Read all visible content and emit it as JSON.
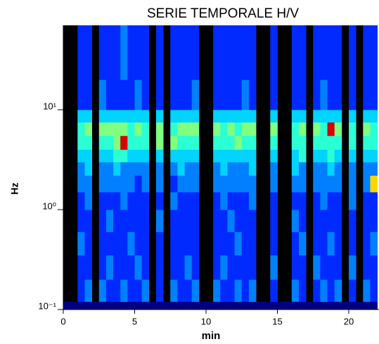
{
  "chart_data": {
    "type": "heatmap",
    "title": "SERIE TEMPORALE H/V",
    "xlabel": "min",
    "ylabel": "Hz",
    "xlim": [
      0,
      22
    ],
    "xticks": [
      0,
      5,
      10,
      15,
      20
    ],
    "ylim": [
      0.1,
      70
    ],
    "yscale": "log",
    "yticks": [
      {
        "value": 0.1,
        "label": "10⁻¹"
      },
      {
        "value": 1,
        "label": "10⁰"
      },
      {
        "value": 10,
        "label": "10¹"
      }
    ],
    "colormap": "jet",
    "clim": [
      0,
      12
    ],
    "missing_color": "#000000",
    "xbins": [
      0,
      0.5,
      1,
      1.5,
      2,
      2.5,
      3,
      3.5,
      4,
      4.5,
      5,
      5.5,
      6,
      6.5,
      7,
      7.5,
      8,
      8.5,
      9,
      9.5,
      10,
      10.5,
      11,
      11.5,
      12,
      12.5,
      13,
      13.5,
      14,
      14.5,
      15,
      15.5,
      16,
      16.5,
      17,
      17.5,
      18,
      18.5,
      19,
      19.5,
      20,
      20.5,
      21,
      21.5,
      22
    ],
    "ybins": [
      0.1,
      0.12,
      0.2,
      0.35,
      0.6,
      1,
      1.5,
      2.2,
      3,
      4,
      5.5,
      7.5,
      10,
      20,
      70
    ],
    "z": [
      [
        0,
        0,
        0,
        0,
        0,
        0,
        0,
        0,
        0,
        0,
        0,
        0,
        0,
        0,
        0,
        0,
        0,
        0,
        0,
        0,
        0,
        0,
        0,
        0,
        0,
        0,
        0,
        0,
        0,
        0,
        0,
        0,
        0,
        0,
        0,
        0,
        0,
        0,
        0,
        0,
        0,
        0,
        0,
        0
      ],
      [
        null,
        null,
        2,
        3,
        null,
        3,
        2,
        2,
        3,
        2,
        2,
        3,
        null,
        2,
        null,
        3,
        2,
        2,
        3,
        null,
        null,
        3,
        2,
        2,
        3,
        2,
        3,
        null,
        null,
        2,
        null,
        null,
        3,
        2,
        null,
        2,
        3,
        2,
        3,
        null,
        2,
        null,
        3,
        2
      ],
      [
        null,
        null,
        2,
        2,
        null,
        2,
        3,
        2,
        2,
        2,
        3,
        2,
        null,
        2,
        null,
        2,
        2,
        3,
        2,
        null,
        null,
        2,
        3,
        2,
        2,
        2,
        2,
        null,
        null,
        3,
        null,
        null,
        2,
        2,
        null,
        3,
        2,
        2,
        2,
        null,
        3,
        null,
        2,
        2
      ],
      [
        null,
        null,
        3,
        2,
        null,
        2,
        2,
        2,
        2,
        3,
        2,
        2,
        null,
        2,
        null,
        2,
        2,
        2,
        2,
        null,
        null,
        2,
        2,
        2,
        3,
        2,
        2,
        null,
        null,
        2,
        null,
        null,
        2,
        3,
        null,
        2,
        2,
        3,
        2,
        null,
        2,
        null,
        2,
        3
      ],
      [
        null,
        null,
        2,
        2,
        null,
        2,
        3,
        2,
        2,
        2,
        2,
        2,
        null,
        3,
        null,
        2,
        2,
        2,
        2,
        null,
        null,
        2,
        2,
        3,
        2,
        2,
        2,
        null,
        null,
        2,
        null,
        null,
        3,
        2,
        null,
        2,
        2,
        2,
        2,
        null,
        2,
        null,
        2,
        2
      ],
      [
        null,
        null,
        2,
        3,
        null,
        2,
        2,
        2,
        3,
        2,
        2,
        2,
        null,
        2,
        null,
        3,
        2,
        2,
        2,
        null,
        null,
        2,
        3,
        2,
        2,
        2,
        3,
        null,
        null,
        2,
        null,
        null,
        2,
        2,
        null,
        2,
        3,
        2,
        2,
        null,
        3,
        null,
        2,
        2
      ],
      [
        null,
        null,
        3,
        3,
        null,
        3,
        3,
        3,
        3,
        3,
        2,
        3,
        null,
        3,
        null,
        2,
        3,
        3,
        3,
        null,
        null,
        3,
        3,
        3,
        3,
        3,
        3,
        null,
        null,
        3,
        null,
        null,
        3,
        3,
        null,
        3,
        3,
        3,
        3,
        null,
        3,
        null,
        3,
        8
      ],
      [
        null,
        null,
        3,
        4,
        null,
        3,
        3,
        4,
        3,
        3,
        3,
        3,
        null,
        3,
        null,
        3,
        4,
        3,
        3,
        null,
        null,
        3,
        4,
        3,
        3,
        3,
        4,
        null,
        null,
        3,
        null,
        null,
        4,
        3,
        null,
        3,
        3,
        4,
        3,
        null,
        3,
        null,
        3,
        3
      ],
      [
        null,
        null,
        4,
        4,
        null,
        4,
        4,
        5,
        5,
        4,
        4,
        4,
        null,
        4,
        null,
        4,
        4,
        4,
        4,
        null,
        null,
        4,
        4,
        4,
        4,
        4,
        4,
        null,
        null,
        4,
        null,
        null,
        4,
        5,
        null,
        4,
        4,
        5,
        4,
        null,
        4,
        null,
        4,
        4
      ],
      [
        null,
        null,
        5,
        5,
        null,
        5,
        5,
        6,
        11,
        5,
        5,
        5,
        null,
        6,
        null,
        6,
        5,
        5,
        5,
        null,
        null,
        5,
        5,
        5,
        6,
        5,
        5,
        null,
        null,
        5,
        null,
        null,
        5,
        5,
        null,
        5,
        5,
        5,
        5,
        null,
        5,
        null,
        5,
        5
      ],
      [
        null,
        null,
        5,
        6,
        null,
        6,
        6,
        6,
        6,
        5,
        6,
        5,
        null,
        6,
        null,
        5,
        6,
        6,
        6,
        null,
        null,
        6,
        5,
        6,
        5,
        6,
        6,
        null,
        null,
        6,
        null,
        null,
        5,
        6,
        null,
        6,
        5,
        11,
        6,
        null,
        5,
        null,
        6,
        5
      ],
      [
        null,
        null,
        4,
        4,
        null,
        4,
        4,
        4,
        4,
        4,
        4,
        4,
        null,
        4,
        null,
        4,
        4,
        4,
        4,
        null,
        null,
        4,
        4,
        4,
        4,
        4,
        4,
        null,
        null,
        4,
        null,
        null,
        4,
        4,
        null,
        4,
        4,
        4,
        4,
        null,
        4,
        null,
        4,
        4
      ],
      [
        null,
        null,
        2,
        2,
        null,
        3,
        2,
        2,
        2,
        2,
        3,
        2,
        null,
        2,
        null,
        2,
        2,
        2,
        3,
        null,
        null,
        2,
        2,
        2,
        2,
        3,
        2,
        null,
        null,
        2,
        null,
        null,
        2,
        2,
        null,
        2,
        3,
        2,
        2,
        null,
        2,
        null,
        2,
        2
      ],
      [
        null,
        null,
        2,
        2,
        null,
        2,
        2,
        2,
        3,
        2,
        2,
        2,
        null,
        2,
        null,
        2,
        2,
        2,
        2,
        null,
        null,
        2,
        2,
        2,
        2,
        2,
        2,
        null,
        null,
        2,
        null,
        null,
        2,
        2,
        null,
        2,
        2,
        2,
        2,
        null,
        2,
        null,
        2,
        2
      ]
    ]
  }
}
